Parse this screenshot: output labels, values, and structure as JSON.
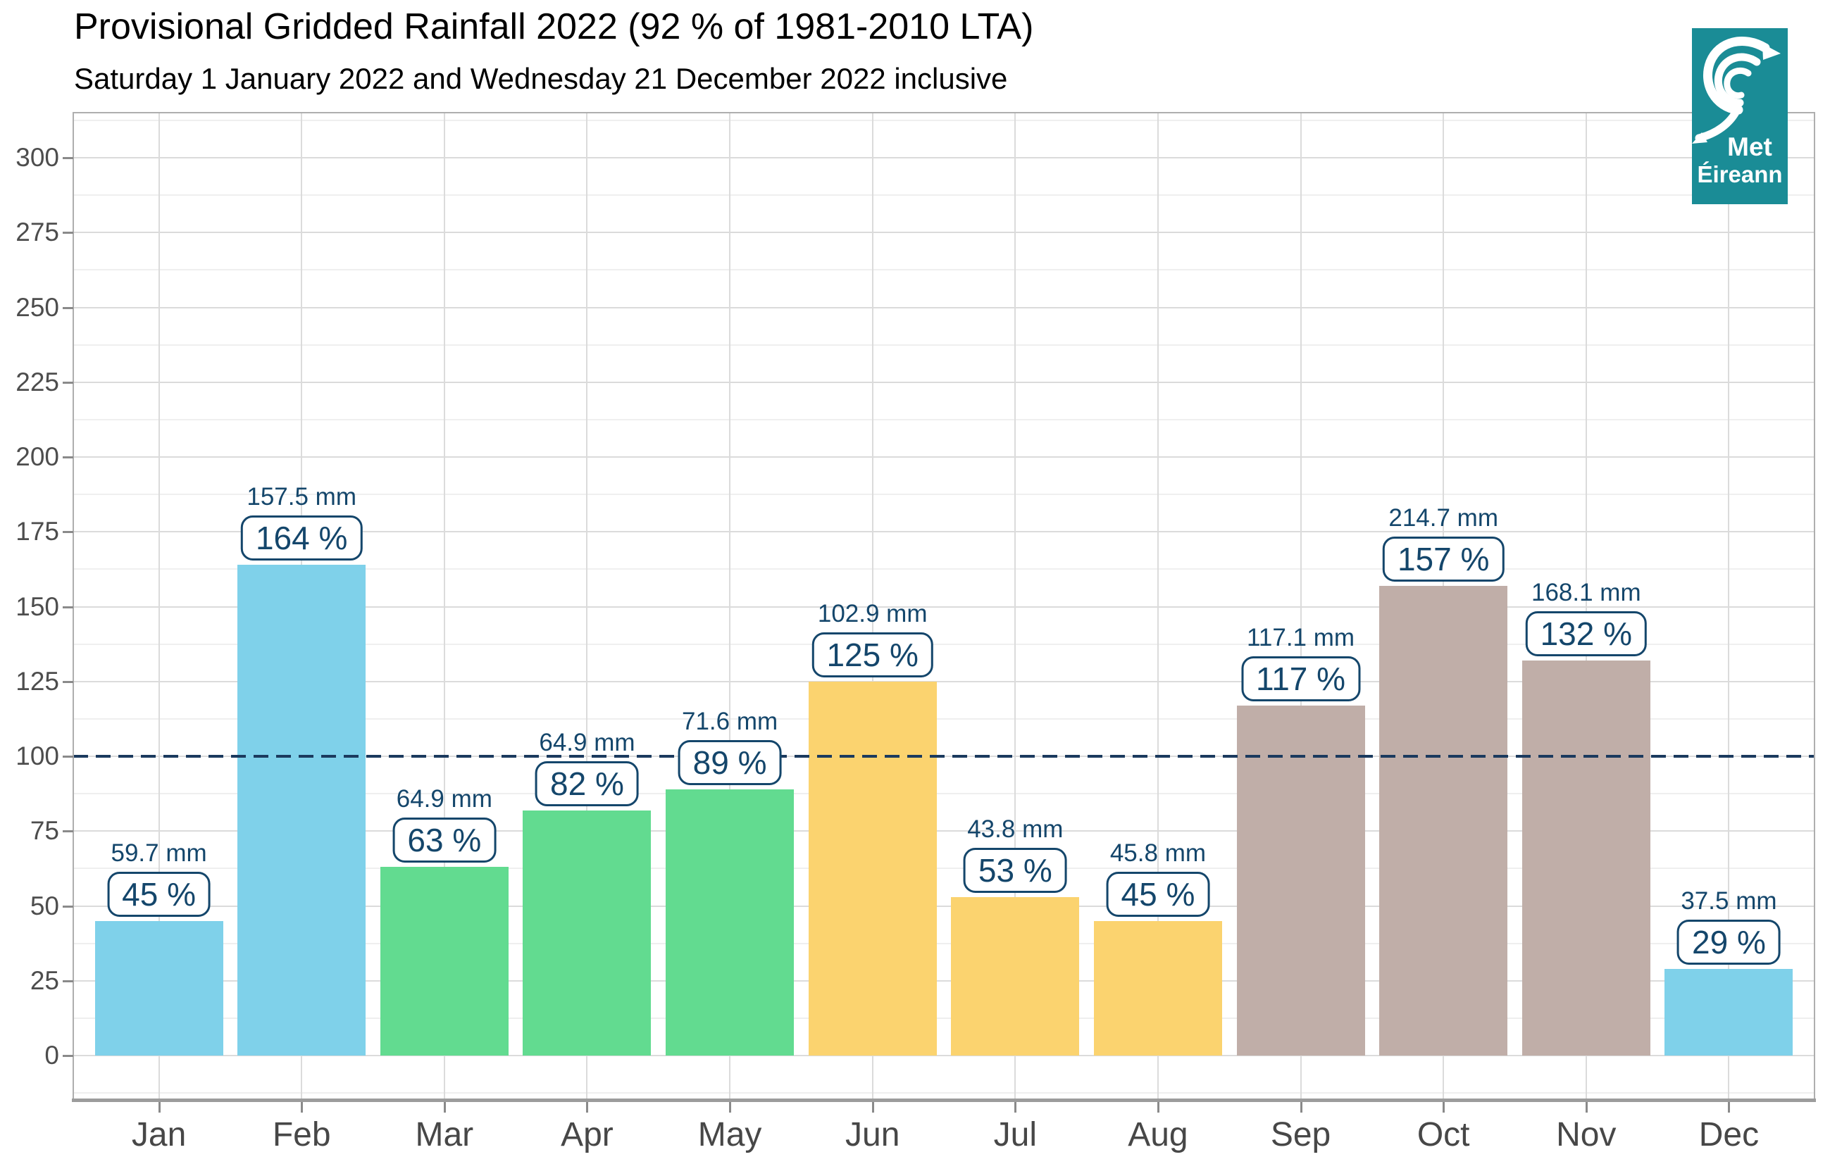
{
  "header": {
    "title": "Provisional Gridded Rainfall 2022 (92 % of 1981-2010 LTA)",
    "subtitle": "Saturday 1 January 2022 and Wednesday 21 December 2022 inclusive"
  },
  "logo": {
    "line1": "Met",
    "line2": "Éireann",
    "background": "#1a8c96",
    "symbol": "hurricane-swirl-icon"
  },
  "chart_data": {
    "type": "bar",
    "title": "Provisional Gridded Rainfall 2022 (92 % of 1981-2010 LTA)",
    "subtitle": "Saturday 1 January 2022 and Wednesday 21 December 2022 inclusive",
    "categories": [
      "Jan",
      "Feb",
      "Mar",
      "Apr",
      "May",
      "Jun",
      "Jul",
      "Aug",
      "Sep",
      "Oct",
      "Nov",
      "Dec"
    ],
    "series": [
      {
        "name": "Rainfall (mm)",
        "unit": "mm",
        "values": [
          59.7,
          157.5,
          64.9,
          64.9,
          71.6,
          102.9,
          43.8,
          45.8,
          117.1,
          214.7,
          168.1,
          37.5
        ]
      },
      {
        "name": "Percent of 1981-2010 LTA",
        "unit": "%",
        "values": [
          45,
          164,
          63,
          82,
          89,
          125,
          53,
          45,
          117,
          157,
          132,
          29
        ]
      }
    ],
    "bar_value_series": "Percent of 1981-2010 LTA",
    "mm_labels": [
      "59.7 mm",
      "157.5 mm",
      "64.9 mm",
      "64.9 mm",
      "71.6 mm",
      "102.9 mm",
      "43.8 mm",
      "45.8 mm",
      "117.1 mm",
      "214.7 mm",
      "168.1 mm",
      "37.5 mm"
    ],
    "pct_labels": [
      "45 %",
      "164 %",
      "63 %",
      "82 %",
      "89 %",
      "125 %",
      "53 %",
      "45 %",
      "117 %",
      "157 %",
      "132 %",
      "29 %"
    ],
    "ylim": [
      -15,
      315
    ],
    "yticks": [
      0,
      25,
      50,
      75,
      100,
      125,
      150,
      175,
      200,
      225,
      250,
      275,
      300
    ],
    "reference_line": {
      "value": 100,
      "style": "dashed",
      "color": "#1b3a5e"
    },
    "grid": {
      "horizontal": "major+minor",
      "vertical": "major-at-categories"
    },
    "legend": "none",
    "bar_colors": [
      "#7fd1ea",
      "#7fd1ea",
      "#62db90",
      "#62db90",
      "#62db90",
      "#fbd36f",
      "#fbd36f",
      "#fbd36f",
      "#c0aea8",
      "#c0aea8",
      "#c0aea8",
      "#7fd1ea"
    ],
    "palette": {
      "winter_blue": "#7fd1ea",
      "spring_green": "#62db90",
      "summer_yellow": "#fbd36f",
      "autumn_taupe": "#c0aea8",
      "label_navy": "#14466b",
      "reference_navy": "#1b3a5e",
      "axis_text_grey": "#4d4d4d"
    }
  }
}
